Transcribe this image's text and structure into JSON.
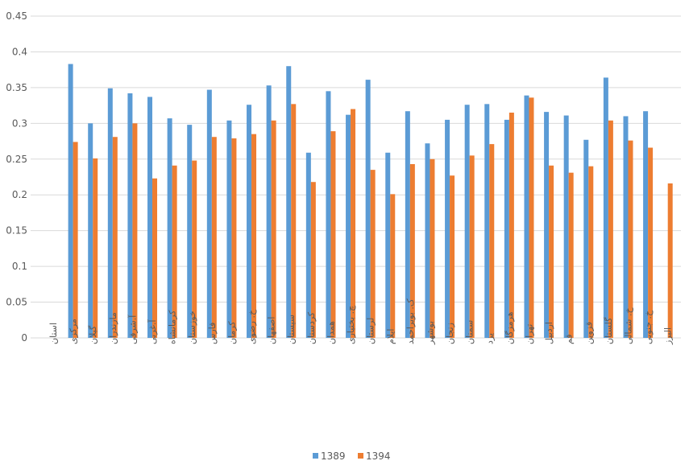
{
  "chart_data": {
    "type": "bar",
    "categories": [
      "استان",
      "مرکزی",
      "گیلان",
      "مازندران",
      "آ.شرقی",
      "آ.غربی",
      "کرمانشاه",
      "خوزستان",
      "فارس",
      "کرمان",
      "خ. رضوی",
      "اصفهان",
      "سیستان",
      "کردستان",
      "همدان",
      "چ. بختیاری",
      "لرستان",
      "ایلام",
      "ک. بویراحمد",
      "بوشهر",
      "زنجان",
      "سمنان",
      "یزد",
      "هرمزگان",
      "تهران",
      "اردبیل",
      "قم",
      "قزوین",
      "گلستان",
      "خ. شمالی",
      "خ. جنوبی",
      "البرز"
    ],
    "series": [
      {
        "name": "1389",
        "color": "#5b9bd5",
        "values": [
          null,
          0.383,
          0.3,
          0.349,
          0.342,
          0.337,
          0.307,
          0.298,
          0.347,
          0.304,
          0.326,
          0.353,
          0.38,
          0.259,
          0.345,
          0.312,
          0.361,
          0.259,
          0.317,
          0.272,
          0.305,
          0.326,
          0.327,
          0.305,
          0.339,
          0.316,
          0.311,
          0.277,
          0.364,
          0.31,
          0.317,
          null
        ]
      },
      {
        "name": "1394",
        "color": "#ed7d31",
        "values": [
          null,
          0.274,
          0.251,
          0.281,
          0.3,
          0.223,
          0.241,
          0.248,
          0.281,
          0.279,
          0.285,
          0.304,
          0.327,
          0.218,
          0.289,
          0.32,
          0.235,
          0.201,
          0.243,
          0.25,
          0.227,
          0.255,
          0.271,
          0.315,
          0.336,
          0.241,
          0.231,
          0.24,
          0.304,
          0.276,
          0.266,
          0.216
        ]
      }
    ],
    "ylim": [
      0,
      0.45
    ],
    "yticks": [
      0,
      0.05,
      0.1,
      0.15,
      0.2,
      0.25,
      0.3,
      0.35,
      0.4,
      0.45
    ],
    "grid": true,
    "legend": "bottom"
  }
}
